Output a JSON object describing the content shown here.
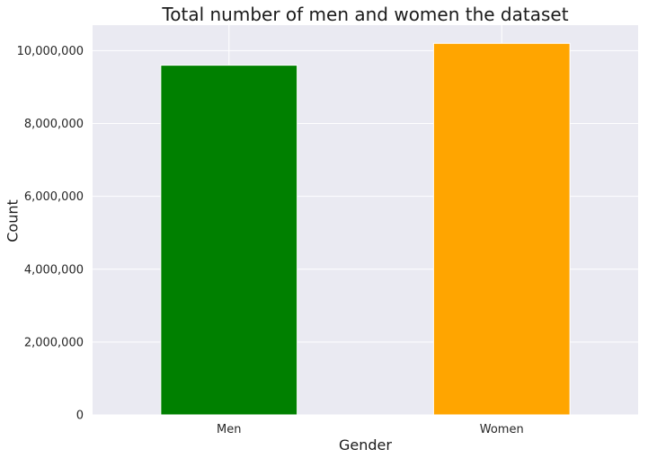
{
  "chart_data": {
    "type": "bar",
    "title": "Total number of men and women the dataset",
    "xlabel": "Gender",
    "ylabel": "Count",
    "categories": [
      "Men",
      "Women"
    ],
    "values": [
      9600000,
      10200000
    ],
    "colors": [
      "#008000",
      "#FFA500"
    ],
    "ylim": [
      0,
      10700000
    ],
    "yticks": [
      0,
      2000000,
      4000000,
      6000000,
      8000000,
      10000000
    ],
    "ytick_labels": [
      "0",
      "2,000,000",
      "4,000,000",
      "6,000,000",
      "8,000,000",
      "10,000,000"
    ],
    "grid": true,
    "background": "#EAEAF2"
  }
}
